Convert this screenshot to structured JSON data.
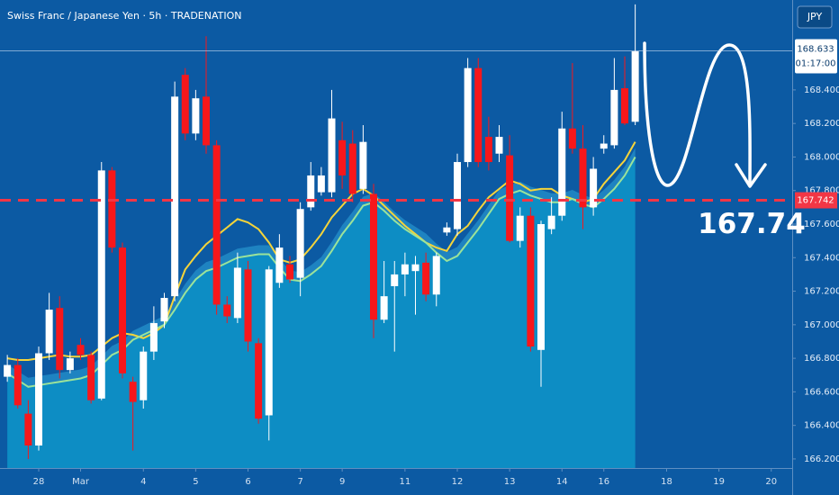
{
  "chart_data": {
    "type": "candlestick",
    "title": "Swiss Franc / Japanese Yen · 5h · TRADENATION",
    "currency_button": "JPY",
    "open": [
      166.69,
      166.76,
      166.47,
      166.28,
      166.83,
      167.1,
      166.73,
      166.88,
      166.82,
      166.56,
      167.92,
      167.46,
      166.66,
      166.55,
      166.84,
      167.02,
      167.17,
      168.49,
      168.14,
      168.36,
      168.07,
      167.12,
      167.04,
      167.33,
      166.89,
      166.46,
      167.25,
      167.36,
      167.28,
      167.7,
      167.79,
      167.79,
      168.1,
      168.08,
      167.81,
      167.78,
      167.03,
      167.23,
      167.3,
      167.32,
      167.37,
      167.18,
      167.55,
      167.57,
      167.97,
      168.53,
      168.12,
      168.02,
      168.01,
      167.5,
      167.65,
      166.85,
      167.57,
      167.65,
      168.17,
      168.05,
      167.7,
      168.05,
      168.07,
      168.41,
      168.21
    ],
    "high": [
      166.82,
      166.8,
      166.55,
      166.87,
      167.19,
      167.17,
      166.84,
      166.92,
      166.84,
      167.97,
      167.94,
      167.49,
      166.69,
      166.87,
      167.11,
      167.19,
      168.45,
      168.53,
      168.4,
      168.72,
      168.1,
      167.17,
      167.43,
      167.38,
      166.92,
      167.35,
      167.54,
      167.41,
      167.73,
      167.97,
      167.94,
      168.4,
      168.21,
      168.16,
      168.19,
      167.84,
      167.38,
      167.38,
      167.43,
      167.41,
      167.43,
      167.43,
      167.61,
      168.02,
      168.59,
      168.59,
      168.24,
      168.19,
      168.13,
      167.7,
      167.7,
      167.62,
      167.76,
      168.27,
      168.56,
      168.19,
      168.0,
      168.13,
      168.59,
      168.6,
      168.91
    ],
    "low": [
      166.66,
      166.5,
      166.2,
      166.25,
      166.79,
      166.68,
      166.71,
      166.79,
      166.53,
      166.55,
      167.43,
      166.68,
      166.25,
      166.5,
      166.79,
      166.98,
      167.14,
      168.1,
      168.1,
      168.02,
      167.06,
      167.01,
      167.01,
      166.84,
      166.41,
      166.31,
      167.22,
      167.25,
      167.17,
      167.68,
      167.77,
      167.76,
      167.81,
      167.73,
      167.78,
      166.92,
      167.01,
      166.84,
      167.17,
      167.06,
      167.14,
      167.11,
      167.53,
      167.53,
      167.94,
      167.94,
      167.92,
      167.97,
      167.49,
      167.46,
      166.84,
      166.63,
      167.54,
      167.62,
      168.02,
      167.57,
      167.65,
      168.02,
      168.05,
      168.19,
      168.19
    ],
    "close": [
      166.76,
      166.52,
      166.28,
      166.83,
      167.09,
      166.73,
      166.8,
      166.82,
      166.55,
      167.92,
      167.46,
      166.71,
      166.54,
      166.84,
      167.01,
      167.16,
      168.36,
      168.14,
      168.35,
      168.07,
      167.12,
      167.05,
      167.34,
      166.9,
      166.44,
      167.33,
      167.46,
      167.27,
      167.69,
      167.89,
      167.89,
      168.23,
      167.89,
      167.78,
      168.09,
      167.03,
      167.17,
      167.3,
      167.36,
      167.36,
      167.18,
      167.41,
      167.58,
      167.97,
      168.53,
      167.97,
      167.97,
      168.12,
      167.5,
      167.65,
      166.87,
      167.6,
      167.65,
      168.17,
      168.05,
      167.7,
      167.93,
      168.08,
      168.4,
      168.2,
      168.63
    ],
    "up_color": "#ffffff",
    "down_color": "#f7171b",
    "series": [
      {
        "color": "#f5d43a",
        "values": [
          166.8,
          166.79,
          166.79,
          166.8,
          166.81,
          166.82,
          166.81,
          166.81,
          166.82,
          166.87,
          166.92,
          166.95,
          166.94,
          166.92,
          166.95,
          167.0,
          167.17,
          167.33,
          167.41,
          167.48,
          167.53,
          167.58,
          167.63,
          167.61,
          167.57,
          167.49,
          167.39,
          167.37,
          167.39,
          167.46,
          167.54,
          167.64,
          167.71,
          167.78,
          167.81,
          167.77,
          167.71,
          167.65,
          167.59,
          167.54,
          167.49,
          167.46,
          167.44,
          167.54,
          167.59,
          167.68,
          167.76,
          167.81,
          167.86,
          167.84,
          167.8,
          167.81,
          167.81,
          167.77,
          167.75,
          167.73,
          167.75,
          167.84,
          167.91,
          167.98,
          168.09
        ]
      },
      {
        "color": "#9be39a",
        "area_color": "#0d8dc4",
        "values": [
          166.71,
          166.67,
          166.63,
          166.64,
          166.65,
          166.66,
          166.67,
          166.68,
          166.7,
          166.76,
          166.82,
          166.85,
          166.91,
          166.94,
          166.97,
          167.0,
          167.09,
          167.19,
          167.27,
          167.32,
          167.34,
          167.37,
          167.4,
          167.41,
          167.42,
          167.42,
          167.34,
          167.27,
          167.26,
          167.3,
          167.35,
          167.44,
          167.54,
          167.62,
          167.71,
          167.73,
          167.68,
          167.62,
          167.57,
          167.53,
          167.49,
          167.43,
          167.38,
          167.41,
          167.49,
          167.57,
          167.66,
          167.75,
          167.78,
          167.8,
          167.77,
          167.75,
          167.73,
          167.73,
          167.75,
          167.72,
          167.7,
          167.75,
          167.81,
          167.89,
          168.0
        ]
      }
    ],
    "ylim": [
      166.146,
      168.936
    ],
    "yticks": [
      {
        "value": 166.2,
        "label": "166.200"
      },
      {
        "value": 166.4,
        "label": "166.400"
      },
      {
        "value": 166.6,
        "label": "166.600"
      },
      {
        "value": 166.8,
        "label": "166.800"
      },
      {
        "value": 167.0,
        "label": "167.000"
      },
      {
        "value": 167.2,
        "label": "167.200"
      },
      {
        "value": 167.4,
        "label": "167.400"
      },
      {
        "value": 167.6,
        "label": "167.600"
      },
      {
        "value": 167.8,
        "label": "167.800"
      },
      {
        "value": 168.0,
        "label": "168.000"
      },
      {
        "value": 168.2,
        "label": "168.200"
      },
      {
        "value": 168.4,
        "label": "168.400"
      }
    ],
    "xlim": [
      -0.7,
      75
    ],
    "xticks": [
      {
        "value": 3,
        "label": "28"
      },
      {
        "value": 7,
        "label": "Mar"
      },
      {
        "value": 13,
        "label": "4"
      },
      {
        "value": 18,
        "label": "5"
      },
      {
        "value": 23,
        "label": "6"
      },
      {
        "value": 28,
        "label": "7"
      },
      {
        "value": 32,
        "label": "9"
      },
      {
        "value": 38,
        "label": "11"
      },
      {
        "value": 43,
        "label": "12"
      },
      {
        "value": 48,
        "label": "13"
      },
      {
        "value": 53,
        "label": "14"
      },
      {
        "value": 57,
        "label": "16"
      },
      {
        "value": 63,
        "label": "18"
      },
      {
        "value": 68,
        "label": "19"
      },
      {
        "value": 73,
        "label": "20"
      }
    ],
    "last_price": 168.633,
    "countdown": "01:17:00",
    "level": 167.742,
    "level_color": "#f23645",
    "annotation": "167.74"
  }
}
